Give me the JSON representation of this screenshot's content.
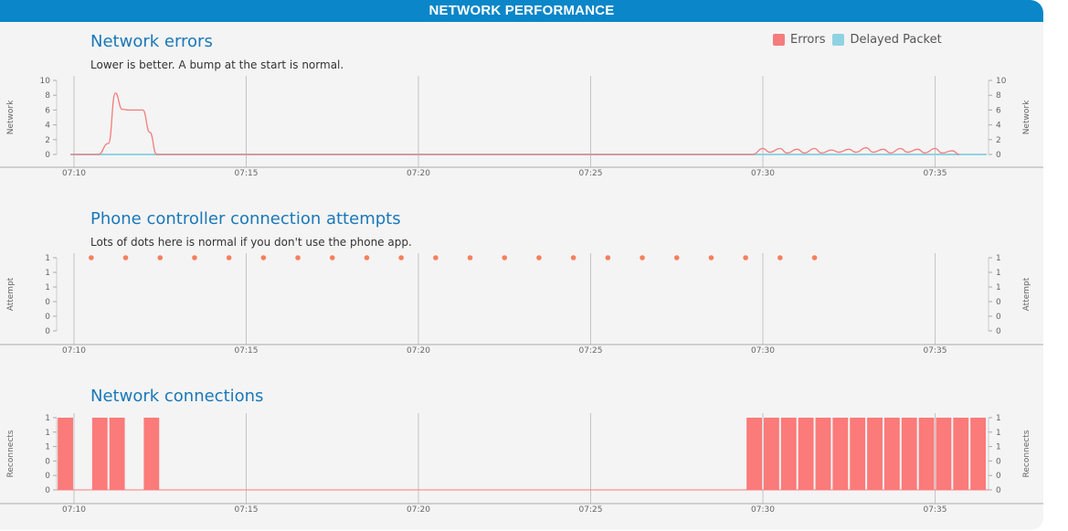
{
  "header": {
    "title": "NETWORK PERFORMANCE"
  },
  "colors": {
    "errors": "#f47c7c",
    "delayed": "#8fd3e3",
    "dot": "#f77f5b",
    "bar": "#fb7a7a",
    "title": "#1a78b8",
    "header": "#0a86c9"
  },
  "chart_data": [
    {
      "type": "line",
      "title": "Network errors",
      "subtitle": "Lower is better. A bump at the start is normal.",
      "ylabel": "Network",
      "ylim": [
        0,
        10
      ],
      "y_ticks": [
        "0",
        "2",
        "4",
        "6",
        "8",
        "10"
      ],
      "x_ticks": [
        "07:10",
        "07:15",
        "07:20",
        "07:25",
        "07:30",
        "07:35"
      ],
      "legend": [
        "Errors",
        "Delayed Packet"
      ],
      "series": [
        {
          "name": "Errors",
          "x": [
            "07:09.9",
            "07:10.7",
            "07:11.0",
            "07:11.2",
            "07:11.4",
            "07:11.6",
            "07:12.0",
            "07:12.2",
            "07:12.4",
            "07:29.7",
            "07:30.0",
            "07:30.2",
            "07:30.5",
            "07:30.7",
            "07:31.0",
            "07:31.2",
            "07:31.5",
            "07:31.7",
            "07:32.0",
            "07:32.2",
            "07:32.5",
            "07:32.7",
            "07:33.0",
            "07:33.2",
            "07:33.5",
            "07:33.7",
            "07:34.0",
            "07:34.2",
            "07:34.5",
            "07:34.7",
            "07:35.0",
            "07:35.2",
            "07:35.5",
            "07:35.7"
          ],
          "values": [
            0,
            0,
            1.5,
            8.3,
            6.1,
            6.0,
            6.0,
            3,
            0,
            0,
            0.8,
            0.3,
            0.8,
            0.2,
            0.7,
            0.2,
            0.8,
            0.2,
            0.6,
            0.3,
            0.7,
            0.3,
            0.9,
            0.3,
            0.7,
            0.2,
            0.8,
            0.3,
            0.7,
            0.2,
            0.8,
            0.2,
            0.5,
            0
          ]
        },
        {
          "name": "Delayed Packet",
          "x": [
            "07:09.9",
            "07:36.5"
          ],
          "values": [
            0,
            0
          ]
        }
      ]
    },
    {
      "type": "scatter",
      "title": "Phone controller connection attempts",
      "subtitle": "Lots of dots here is normal if you don't use the phone app.",
      "ylabel": "Attempt",
      "y_ticks": [
        "0",
        "0",
        "0",
        "1",
        "1",
        "1"
      ],
      "x_ticks": [
        "07:10",
        "07:15",
        "07:20",
        "07:25",
        "07:30",
        "07:35"
      ],
      "series": [
        {
          "x": [
            "07:10.5",
            "07:11.5",
            "07:12.5",
            "07:13.5",
            "07:14.5",
            "07:15.5",
            "07:16.5",
            "07:17.5",
            "07:18.5",
            "07:19.5",
            "07:20.5",
            "07:21.5",
            "07:22.5",
            "07:23.5",
            "07:24.5",
            "07:25.5",
            "07:26.5",
            "07:27.5",
            "07:28.5",
            "07:29.5",
            "07:30.5",
            "07:31.5"
          ],
          "values": [
            1,
            1,
            1,
            1,
            1,
            1,
            1,
            1,
            1,
            1,
            1,
            1,
            1,
            1,
            1,
            1,
            1,
            1,
            1,
            1,
            1,
            1
          ]
        }
      ]
    },
    {
      "type": "bar",
      "title": "Network connections",
      "ylabel": "Reconnects",
      "y_ticks": [
        "0",
        "0",
        "0",
        "1",
        "1",
        "1"
      ],
      "x_ticks": [
        "07:10",
        "07:15",
        "07:20",
        "07:25",
        "07:30",
        "07:35"
      ],
      "series": [
        {
          "start": [
            "07:09.5",
            "07:10.5",
            "07:11.0",
            "07:12.0",
            "07:29.5",
            "07:30.0",
            "07:30.5",
            "07:31.0",
            "07:31.5",
            "07:32.0",
            "07:32.5",
            "07:33.0",
            "07:33.5",
            "07:34.0",
            "07:34.5",
            "07:35.0",
            "07:35.5",
            "07:36.0"
          ],
          "values": [
            1,
            1,
            1,
            1,
            1,
            1,
            1,
            1,
            1,
            1,
            1,
            1,
            1,
            1,
            1,
            1,
            1,
            1
          ]
        }
      ]
    }
  ]
}
